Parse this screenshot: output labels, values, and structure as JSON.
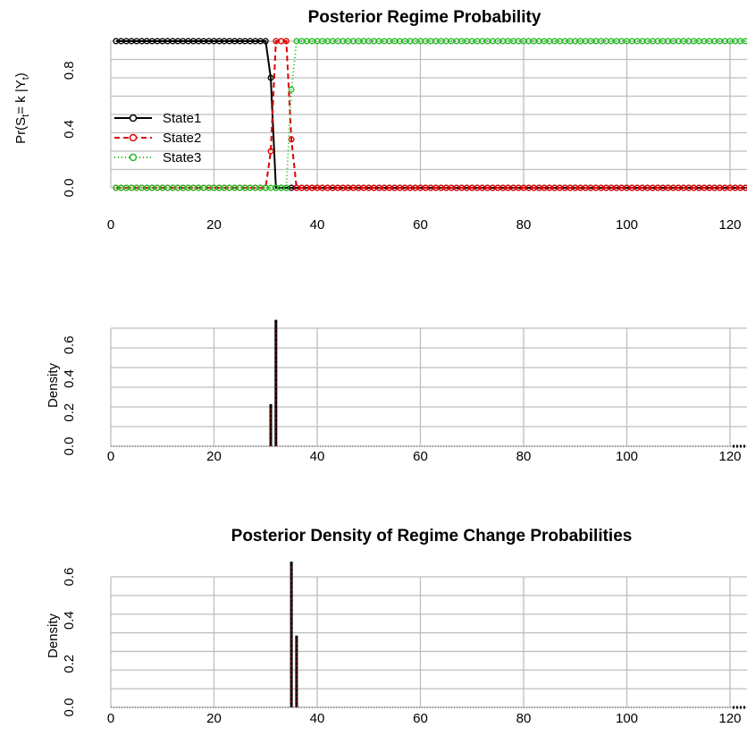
{
  "figure": {
    "panels": [
      "regime-probability",
      "regime-change-1",
      "regime-change-2"
    ]
  },
  "chart_data": [
    {
      "type": "line",
      "title": "Posterior Regime Probability",
      "ylabel": "Pr(S_t= k |Y_t)",
      "ylabel_parts": {
        "pre": "Pr(S",
        "sub1": "t",
        "mid": "= k |Y",
        "sub2": "t",
        "post": ")"
      },
      "xlabel": "",
      "xlim": [
        1,
        124
      ],
      "ylim": [
        0,
        1
      ],
      "x_ticks": [
        0,
        20,
        40,
        60,
        80,
        100,
        120
      ],
      "y_ticks": [
        "0.0",
        "0.4",
        "0.8"
      ],
      "legend": {
        "position": "left",
        "entries": [
          "State1",
          "State2",
          "State3"
        ]
      },
      "series": [
        {
          "name": "State1",
          "color": "#000000",
          "dash": "solid",
          "segments": [
            {
              "x_from": 1,
              "x_to": 30,
              "y": 1
            },
            {
              "x_from": 33,
              "x_to": 124,
              "y": 0
            }
          ],
          "points": [
            {
              "x": 31,
              "y": 0.75
            },
            {
              "x": 32,
              "y": 0
            }
          ]
        },
        {
          "name": "State2",
          "color": "#df0000",
          "dash": "dashed",
          "segments": [
            {
              "x_from": 1,
              "x_to": 30,
              "y": 0
            },
            {
              "x_from": 37,
              "x_to": 124,
              "y": 0
            }
          ],
          "points": [
            {
              "x": 31,
              "y": 0.25
            },
            {
              "x": 32,
              "y": 1
            },
            {
              "x": 33,
              "y": 1
            },
            {
              "x": 34,
              "y": 1
            },
            {
              "x": 35,
              "y": 0.33
            },
            {
              "x": 36,
              "y": 0
            }
          ]
        },
        {
          "name": "State3",
          "color": "#22bb22",
          "dash": "dotted",
          "segments": [
            {
              "x_from": 1,
              "x_to": 34,
              "y": 0
            },
            {
              "x_from": 36,
              "x_to": 124,
              "y": 1
            }
          ],
          "points": [
            {
              "x": 35,
              "y": 0.67
            }
          ]
        }
      ]
    },
    {
      "type": "bar",
      "title": "",
      "ylabel": "Density",
      "xlabel": "",
      "xlim": [
        1,
        124
      ],
      "ylim": [
        0,
        0.7
      ],
      "x_ticks": [
        0,
        20,
        40,
        60,
        80,
        100,
        120
      ],
      "y_ticks": [
        "0.0",
        "0.2",
        "0.4",
        "0.6"
      ],
      "bars": [
        {
          "x": 31,
          "value": 0.25
        },
        {
          "x": 32,
          "value": 0.75
        }
      ],
      "color": "#000000"
    },
    {
      "type": "bar",
      "title": "Posterior Density of Regime Change Probabilities",
      "ylabel": "Density",
      "xlabel": "",
      "xlim": [
        1,
        124
      ],
      "ylim": [
        0,
        0.6
      ],
      "x_ticks": [
        0,
        20,
        40,
        60,
        80,
        100,
        120
      ],
      "y_ticks": [
        "0.0",
        "0.2",
        "0.4",
        "0.6"
      ],
      "bars": [
        {
          "x": 35,
          "value": 0.67
        },
        {
          "x": 36,
          "value": 0.33
        }
      ],
      "color": "#000000"
    }
  ]
}
